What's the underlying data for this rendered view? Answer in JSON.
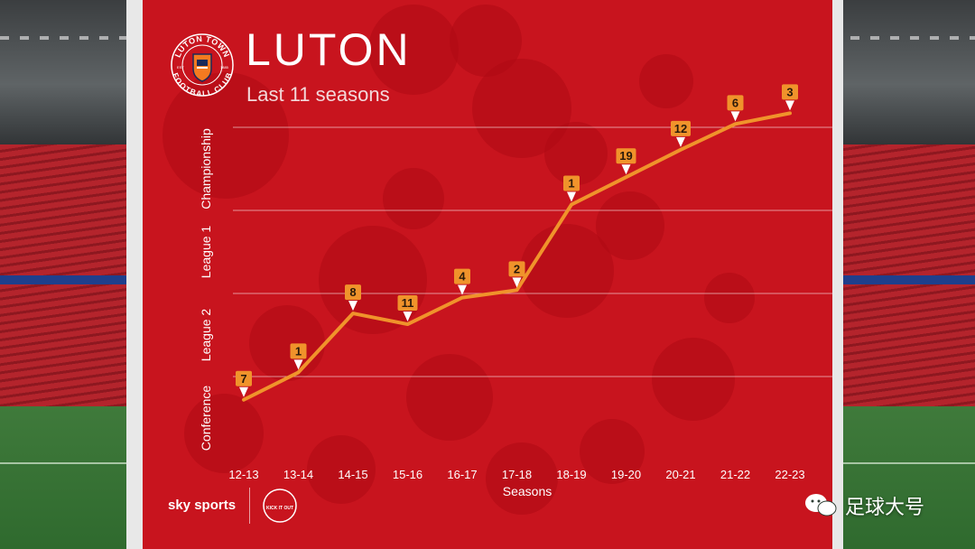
{
  "page": {
    "title": "LUTON",
    "subtitle": "Last 11 seasons",
    "crest_text_top": "LUTON TOWN",
    "crest_text_bottom": "FOOTBALL CLUB",
    "crest_est": "EST",
    "crest_year": "1885",
    "broadcaster": "sky sports",
    "campaign_logo": "KICK IT OUT",
    "watermark": "足球大号",
    "colors": {
      "panel": "#c8141e",
      "line": "#f0932b",
      "marker": "#f0932b",
      "text": "#ffffff"
    }
  },
  "chart_data": {
    "type": "line",
    "xlabel": "Seasons",
    "ylabel": "",
    "categories": [
      "12-13",
      "13-14",
      "14-15",
      "15-16",
      "16-17",
      "17-18",
      "18-19",
      "19-20",
      "20-21",
      "21-22",
      "22-23"
    ],
    "tiers": [
      "Conference",
      "League 2",
      "League 1",
      "Championship"
    ],
    "tier_index": [
      0.72,
      1.05,
      1.76,
      1.63,
      1.95,
      2.04,
      3.07,
      3.4,
      3.73,
      4.04,
      4.17
    ],
    "positions": [
      "7",
      "1",
      "8",
      "11",
      "4",
      "2",
      "1",
      "19",
      "12",
      "6",
      "3"
    ],
    "ylim": [
      0,
      4.25
    ],
    "grid": true
  }
}
